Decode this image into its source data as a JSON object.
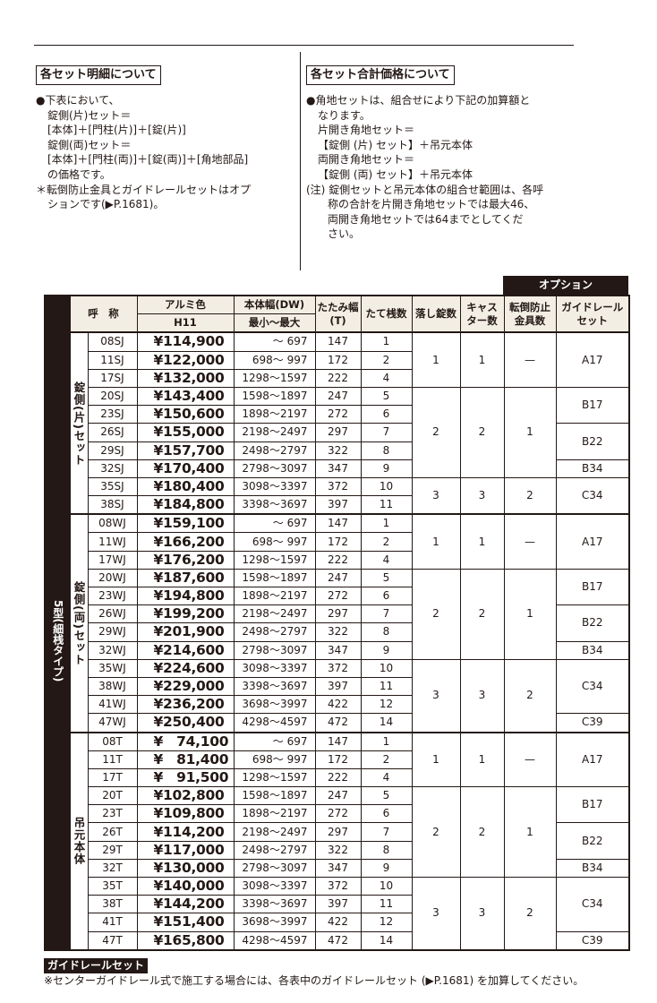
{
  "left_section": {
    "heading": "各セット明細について",
    "lines": [
      "●下表において、",
      "錠側(片)セット＝",
      "[本体]＋[門柱(片)]＋[錠(片)]",
      "錠側(両)セット＝",
      "[本体]＋[門柱(両)]＋[錠(両)]＋[角地部品]",
      "の価格です。",
      "＊転倒防止金具とガイドレールセットはオプ",
      "ションです(▶P.1681)。"
    ]
  },
  "right_section": {
    "heading": "各セット合計価格について",
    "lines": [
      "●角地セットは、組合せにより下記の加算額と",
      "なります。",
      "片開き角地セット＝",
      "【錠側 (片) セット】＋吊元本体",
      "両開き角地セット＝",
      "【錠側 (両) セット】＋吊元本体",
      "(注) 錠側セットと吊元本体の組合せ範囲は、各呼",
      "称の合計を片開き角地セットでは最大46、",
      "両開き角地セットでは64までとしてくだ",
      "さい。"
    ]
  },
  "table": {
    "option_header": "オプション",
    "headers": {
      "name": "呼　称",
      "color": "アルミ色",
      "color_sub": "H11",
      "dw": "本体幅(DW)",
      "dw_sub": "最小～最大",
      "t": "たたみ幅\n(T)",
      "tate": "たて桟数",
      "otoshi": "落し錠数",
      "caster": "キャス\nター数",
      "tento": "転倒防止\n金具数",
      "guide": "ガイドレール\nセット"
    },
    "type_label": "5型(細桟タイプ)",
    "groups": [
      {
        "label": "錠側(片)セット",
        "rows": [
          [
            "08SJ",
            "¥114,900",
            "～ 697",
            "147",
            "1"
          ],
          [
            "11SJ",
            "¥122,000",
            "698～ 997",
            "172",
            "2"
          ],
          [
            "17SJ",
            "¥132,000",
            "1298～1597",
            "222",
            "4"
          ],
          [
            "20SJ",
            "¥143,400",
            "1598～1897",
            "247",
            "5"
          ],
          [
            "23SJ",
            "¥150,600",
            "1898～2197",
            "272",
            "6"
          ],
          [
            "26SJ",
            "¥155,000",
            "2198～2497",
            "297",
            "7"
          ],
          [
            "29SJ",
            "¥157,700",
            "2498～2797",
            "322",
            "8"
          ],
          [
            "32SJ",
            "¥170,400",
            "2798～3097",
            "347",
            "9"
          ],
          [
            "35SJ",
            "¥180,400",
            "3098～3397",
            "372",
            "10"
          ],
          [
            "38SJ",
            "¥184,800",
            "3398～3697",
            "397",
            "11"
          ]
        ],
        "counts": [
          {
            "applies_to": [
              "08SJ",
              "11SJ",
              "17SJ"
            ],
            "otoshi": "1",
            "caster": "1",
            "tento": "—"
          },
          {
            "applies_to": [
              "20SJ",
              "23SJ",
              "26SJ",
              "29SJ",
              "32SJ"
            ],
            "otoshi": "2",
            "caster": "2",
            "tento": "1"
          },
          {
            "applies_to": [
              "35SJ",
              "38SJ"
            ],
            "otoshi": "3",
            "caster": "3",
            "tento": "2"
          }
        ],
        "guides": [
          {
            "applies_to": [
              "08SJ",
              "11SJ",
              "17SJ"
            ],
            "value": "A17"
          },
          {
            "applies_to": [
              "20SJ",
              "23SJ"
            ],
            "value": "B17"
          },
          {
            "applies_to": [
              "26SJ",
              "29SJ"
            ],
            "value": "B22"
          },
          {
            "applies_to": [
              "32SJ"
            ],
            "value": "B34"
          },
          {
            "applies_to": [
              "35SJ",
              "38SJ"
            ],
            "value": "C34"
          }
        ]
      },
      {
        "label": "錠側(両)セット",
        "rows": [
          [
            "08WJ",
            "¥159,100",
            "～ 697",
            "147",
            "1"
          ],
          [
            "11WJ",
            "¥166,200",
            "698～ 997",
            "172",
            "2"
          ],
          [
            "17WJ",
            "¥176,200",
            "1298～1597",
            "222",
            "4"
          ],
          [
            "20WJ",
            "¥187,600",
            "1598～1897",
            "247",
            "5"
          ],
          [
            "23WJ",
            "¥194,800",
            "1898～2197",
            "272",
            "6"
          ],
          [
            "26WJ",
            "¥199,200",
            "2198～2497",
            "297",
            "7"
          ],
          [
            "29WJ",
            "¥201,900",
            "2498～2797",
            "322",
            "8"
          ],
          [
            "32WJ",
            "¥214,600",
            "2798～3097",
            "347",
            "9"
          ],
          [
            "35WJ",
            "¥224,600",
            "3098～3397",
            "372",
            "10"
          ],
          [
            "38WJ",
            "¥229,000",
            "3398～3697",
            "397",
            "11"
          ],
          [
            "41WJ",
            "¥236,200",
            "3698～3997",
            "422",
            "12"
          ],
          [
            "47WJ",
            "¥250,400",
            "4298～4597",
            "472",
            "14"
          ]
        ],
        "counts": [
          {
            "applies_to": [
              "08WJ",
              "11WJ",
              "17WJ"
            ],
            "otoshi": "1",
            "caster": "1",
            "tento": "—"
          },
          {
            "applies_to": [
              "20WJ",
              "23WJ",
              "26WJ",
              "29WJ",
              "32WJ"
            ],
            "otoshi": "2",
            "caster": "2",
            "tento": "1"
          },
          {
            "applies_to": [
              "35WJ",
              "38WJ",
              "41WJ",
              "47WJ"
            ],
            "otoshi": "3",
            "caster": "3",
            "tento": "2"
          }
        ],
        "guides": [
          {
            "applies_to": [
              "08WJ",
              "11WJ",
              "17WJ"
            ],
            "value": "A17"
          },
          {
            "applies_to": [
              "20WJ",
              "23WJ"
            ],
            "value": "B17"
          },
          {
            "applies_to": [
              "26WJ",
              "29WJ"
            ],
            "value": "B22"
          },
          {
            "applies_to": [
              "32WJ"
            ],
            "value": "B34"
          },
          {
            "applies_to": [
              "35WJ",
              "38WJ",
              "41WJ"
            ],
            "value": "C34"
          },
          {
            "applies_to": [
              "47WJ"
            ],
            "value": "C39"
          }
        ]
      },
      {
        "label": "吊元本体",
        "rows": [
          [
            "08T",
            "¥　74,100",
            "～ 697",
            "147",
            "1"
          ],
          [
            "11T",
            "¥　81,400",
            "698～ 997",
            "172",
            "2"
          ],
          [
            "17T",
            "¥　91,500",
            "1298～1597",
            "222",
            "4"
          ],
          [
            "20T",
            "¥102,800",
            "1598～1897",
            "247",
            "5"
          ],
          [
            "23T",
            "¥109,800",
            "1898～2197",
            "272",
            "6"
          ],
          [
            "26T",
            "¥114,200",
            "2198～2497",
            "297",
            "7"
          ],
          [
            "29T",
            "¥117,000",
            "2498～2797",
            "322",
            "8"
          ],
          [
            "32T",
            "¥130,000",
            "2798～3097",
            "347",
            "9"
          ],
          [
            "35T",
            "¥140,000",
            "3098～3397",
            "372",
            "10"
          ],
          [
            "38T",
            "¥144,200",
            "3398～3697",
            "397",
            "11"
          ],
          [
            "41T",
            "¥151,400",
            "3698～3997",
            "422",
            "12"
          ],
          [
            "47T",
            "¥165,800",
            "4298～4597",
            "472",
            "14"
          ]
        ],
        "counts": [
          {
            "applies_to": [
              "08T",
              "11T",
              "17T"
            ],
            "otoshi": "1",
            "caster": "1",
            "tento": "—"
          },
          {
            "applies_to": [
              "20T",
              "23T",
              "26T",
              "29T",
              "32T"
            ],
            "otoshi": "2",
            "caster": "2",
            "tento": "1"
          },
          {
            "applies_to": [
              "35T",
              "38T",
              "41T",
              "47T"
            ],
            "otoshi": "3",
            "caster": "3",
            "tento": "2"
          }
        ],
        "guides": [
          {
            "applies_to": [
              "08T",
              "11T",
              "17T"
            ],
            "value": "A17"
          },
          {
            "applies_to": [
              "20T",
              "23T"
            ],
            "value": "B17"
          },
          {
            "applies_to": [
              "26T",
              "29T"
            ],
            "value": "B22"
          },
          {
            "applies_to": [
              "32T"
            ],
            "value": "B34"
          },
          {
            "applies_to": [
              "35T",
              "38T",
              "41T"
            ],
            "value": "C34"
          },
          {
            "applies_to": [
              "47T"
            ],
            "value": "C39"
          }
        ]
      }
    ]
  },
  "footer": {
    "heading": "ガイドレールセット",
    "note": "※センターガイドレール式で施工する場合には、各表中のガイドレールセット (▶P.1681) を加算してください。"
  }
}
